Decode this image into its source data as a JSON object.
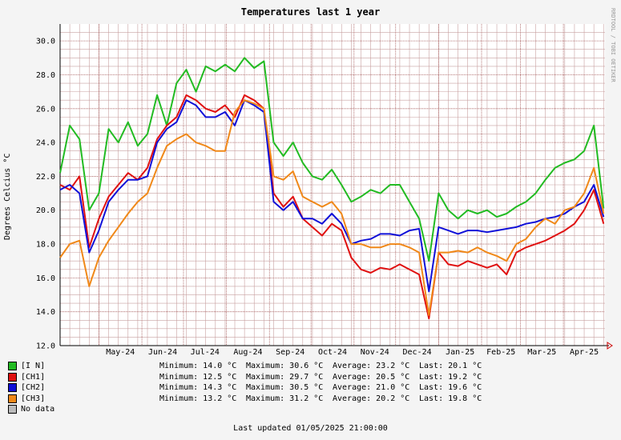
{
  "title": "Temperatures last 1 year",
  "watermark": "RRDTOOL / TOBI OETIKER",
  "updated": "Last updated 01/05/2025 21:00:00",
  "colors": {
    "IN": "#22bb22",
    "CH1": "#e01010",
    "CH2": "#1010d8",
    "CH3": "#f08818",
    "nodata": "#bbbbbb"
  },
  "legend": [
    {
      "label": "[I N]",
      "color": "#22bb22"
    },
    {
      "label": "[CH1]",
      "color": "#e01010"
    },
    {
      "label": "[CH2]",
      "color": "#1010d8"
    },
    {
      "label": "[CH3]",
      "color": "#f08818"
    },
    {
      "label": "No data",
      "color": "#bbbbbb"
    }
  ],
  "stats": [
    {
      "min": "Minimum: 14.0 °C",
      "max": "Maximum: 30.6 °C",
      "avg": "Average: 23.2 °C",
      "last": "Last: 20.1 °C"
    },
    {
      "min": "Minimum: 12.5 °C",
      "max": "Maximum: 29.7 °C",
      "avg": "Average: 20.5 °C",
      "last": "Last: 19.2 °C"
    },
    {
      "min": "Minimum: 14.3 °C",
      "max": "Maximum: 30.5 °C",
      "avg": "Average: 21.0 °C",
      "last": "Last: 19.6 °C"
    },
    {
      "min": "Minimum: 13.2 °C",
      "max": "Maximum: 31.2 °C",
      "avg": "Average: 20.2 °C",
      "last": "Last: 19.8 °C"
    }
  ],
  "chart_data": {
    "type": "line",
    "title": "Temperatures last 1 year",
    "ylabel": "Degrees Celcius   °C",
    "ylim": [
      12,
      31
    ],
    "yticks": [
      12.0,
      14.0,
      16.0,
      18.0,
      20.0,
      22.0,
      24.0,
      26.0,
      28.0,
      30.0
    ],
    "x_start": "2024-04-03",
    "x_end": "2025-05-01",
    "xticks": [
      {
        "date": "2024-05-01",
        "label": "May-24"
      },
      {
        "date": "2024-06-01",
        "label": "Jun-24"
      },
      {
        "date": "2024-07-01",
        "label": "Jul-24"
      },
      {
        "date": "2024-08-01",
        "label": "Aug-24"
      },
      {
        "date": "2024-09-01",
        "label": "Sep-24"
      },
      {
        "date": "2024-10-01",
        "label": "Oct-24"
      },
      {
        "date": "2024-11-01",
        "label": "Nov-24"
      },
      {
        "date": "2024-12-01",
        "label": "Dec-24"
      },
      {
        "date": "2025-01-01",
        "label": "Jan-25"
      },
      {
        "date": "2025-02-01",
        "label": "Feb-25"
      },
      {
        "date": "2025-03-01",
        "label": "Mar-25"
      },
      {
        "date": "2025-04-01",
        "label": "Apr-25"
      }
    ],
    "grid": true,
    "x": [
      "2024-04-03",
      "2024-04-10",
      "2024-04-17",
      "2024-04-24",
      "2024-05-01",
      "2024-05-08",
      "2024-05-15",
      "2024-05-22",
      "2024-05-29",
      "2024-06-05",
      "2024-06-12",
      "2024-06-19",
      "2024-06-26",
      "2024-07-03",
      "2024-07-10",
      "2024-07-17",
      "2024-07-24",
      "2024-07-31",
      "2024-08-07",
      "2024-08-14",
      "2024-08-21",
      "2024-08-28",
      "2024-09-04",
      "2024-09-11",
      "2024-09-18",
      "2024-09-25",
      "2024-10-02",
      "2024-10-09",
      "2024-10-16",
      "2024-10-23",
      "2024-10-30",
      "2024-11-06",
      "2024-11-13",
      "2024-11-20",
      "2024-11-27",
      "2024-12-04",
      "2024-12-11",
      "2024-12-18",
      "2024-12-25",
      "2025-01-01",
      "2025-01-08",
      "2025-01-15",
      "2025-01-22",
      "2025-01-29",
      "2025-02-05",
      "2025-02-12",
      "2025-02-19",
      "2025-02-26",
      "2025-03-05",
      "2025-03-12",
      "2025-03-19",
      "2025-03-26",
      "2025-04-02",
      "2025-04-09",
      "2025-04-16",
      "2025-04-23",
      "2025-04-30"
    ],
    "series": [
      {
        "name": "[I N]",
        "color": "#22bb22",
        "values": [
          22.2,
          25.0,
          24.2,
          20.0,
          21.0,
          24.8,
          24.0,
          25.2,
          23.8,
          24.5,
          26.8,
          25.0,
          27.5,
          28.3,
          27.0,
          28.5,
          28.2,
          28.6,
          28.2,
          29.0,
          28.4,
          28.8,
          24.0,
          23.2,
          24.0,
          22.8,
          22.0,
          21.8,
          22.4,
          21.5,
          20.5,
          20.8,
          21.2,
          21.0,
          21.5,
          21.5,
          20.5,
          19.5,
          17.0,
          21.0,
          20.0,
          19.5,
          20.0,
          19.8,
          20.0,
          19.6,
          19.8,
          20.2,
          20.5,
          21.0,
          21.8,
          22.5,
          22.8,
          23.0,
          23.5,
          25.0,
          20.1
        ]
      },
      {
        "name": "[CH1]",
        "color": "#e01010",
        "values": [
          21.5,
          21.2,
          22.0,
          17.8,
          19.5,
          20.8,
          21.5,
          22.2,
          21.8,
          22.5,
          24.2,
          25.0,
          25.5,
          26.8,
          26.5,
          26.0,
          25.8,
          26.2,
          25.5,
          26.8,
          26.5,
          26.0,
          21.0,
          20.2,
          20.8,
          19.5,
          19.0,
          18.5,
          19.2,
          18.8,
          17.2,
          16.5,
          16.3,
          16.6,
          16.5,
          16.8,
          16.5,
          16.2,
          13.6,
          17.5,
          16.8,
          16.7,
          17.0,
          16.8,
          16.6,
          16.8,
          16.2,
          17.5,
          17.8,
          18.0,
          18.2,
          18.5,
          18.8,
          19.2,
          20.0,
          21.2,
          19.2
        ]
      },
      {
        "name": "[CH2]",
        "color": "#1010d8",
        "values": [
          21.2,
          21.5,
          21.0,
          17.5,
          18.8,
          20.5,
          21.2,
          21.8,
          21.8,
          22.0,
          24.0,
          24.8,
          25.2,
          26.5,
          26.2,
          25.5,
          25.5,
          25.8,
          25.0,
          26.5,
          26.2,
          25.8,
          20.5,
          20.0,
          20.5,
          19.5,
          19.5,
          19.2,
          19.8,
          19.2,
          18.0,
          18.2,
          18.3,
          18.6,
          18.6,
          18.5,
          18.8,
          18.9,
          15.2,
          19.0,
          18.8,
          18.6,
          18.8,
          18.8,
          18.7,
          18.8,
          18.9,
          19.0,
          19.2,
          19.3,
          19.5,
          19.6,
          19.8,
          20.2,
          20.5,
          21.5,
          19.6
        ]
      },
      {
        "name": "[CH3]",
        "color": "#f08818",
        "values": [
          17.2,
          18.0,
          18.2,
          15.5,
          17.2,
          18.2,
          19.0,
          19.8,
          20.5,
          21.0,
          22.5,
          23.8,
          24.2,
          24.5,
          24.0,
          23.8,
          23.5,
          23.5,
          25.8,
          26.5,
          26.3,
          26.0,
          22.0,
          21.8,
          22.3,
          20.8,
          20.5,
          20.2,
          20.5,
          19.8,
          18.0,
          18.0,
          17.8,
          17.8,
          18.0,
          18.0,
          17.8,
          17.5,
          13.8,
          17.5,
          17.5,
          17.6,
          17.5,
          17.8,
          17.5,
          17.3,
          17.0,
          18.0,
          18.3,
          19.0,
          19.5,
          19.2,
          20.0,
          20.2,
          21.0,
          22.5,
          19.8
        ]
      }
    ]
  }
}
